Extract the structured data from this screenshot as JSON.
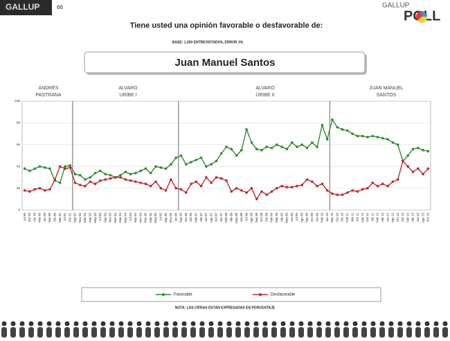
{
  "header": {
    "logo": "GALLUP",
    "page": "66",
    "brand": "GALLUP",
    "brand_word": "POLL"
  },
  "chart_data": {
    "type": "line",
    "title": "Tiene usted una opinión favorable o desfavorable de:",
    "subtitle": "BASE: 1.200 ENTREVISTADOS, ERROR 3%",
    "subject": "Juan Manuel Santos",
    "periods": [
      [
        "ANDRÉS",
        "PASTRANA"
      ],
      [
        "ALVARO",
        "URIBE I"
      ],
      [
        "ALVARO",
        "URIBE II"
      ],
      [
        "JUAN MANUEL",
        "SANTOS"
      ]
    ],
    "categories": [
      "Jul 99",
      "Oct 99",
      "Dic 99",
      "Mar 00",
      "Jun 00",
      "Sep 00",
      "Dic 00",
      "Mar 01",
      "Jul 01",
      "Dic 01",
      "Sep 02",
      "Nov 02",
      "Ene 03",
      "Mar 03",
      "May 03",
      "Jul 03",
      "Sep 03",
      "Nov 03",
      "Ene 04",
      "Mar 04",
      "May 04",
      "Jul 04",
      "Sep 04",
      "Nov 04",
      "Ene 05",
      "Mar 05",
      "May 05",
      "Jul 05",
      "Sep 05",
      "Nov 05",
      "Jun 06",
      "Sep 06",
      "Oct 06",
      "Dic 06",
      "Feb 07",
      "Abr 07",
      "Jun 07",
      "Ago 07",
      "Oct 07",
      "Dic 07",
      "Feb 08",
      "Abr 08",
      "May 08",
      "Jun 08",
      "Jul 08",
      "Ago 08",
      "Sep 08",
      "Oct 08",
      "Dic 08",
      "Feb 09",
      "Mar 09",
      "Abr 09",
      "May 09",
      "Jun 09",
      "Jul 09",
      "Ago 09",
      "Sep 09",
      "Oct 09",
      "Dic 09",
      "Feb 10",
      "Jun 10",
      "Sep 10",
      "Oct 10",
      "Dic 10",
      "Feb 11",
      "Abr 11",
      "Jun 11",
      "Ago 11",
      "Oct 11",
      "Dic 11",
      "Feb 12",
      "Abr 12",
      "Jun 12",
      "Ago 12",
      "Oct 12",
      "Dic 12",
      "Feb 13",
      "Abr 13",
      "Jun 13",
      "Ago 13",
      "Oct 13"
    ],
    "series": [
      {
        "name": "Favorable",
        "color": "#2e8b2e",
        "values": [
          38,
          36,
          38,
          40,
          39,
          38,
          27,
          25,
          40,
          41,
          33,
          32,
          28,
          30,
          34,
          36,
          33,
          32,
          30,
          32,
          35,
          33,
          34,
          36,
          38,
          34,
          40,
          39,
          38,
          42,
          48,
          50,
          42,
          44,
          46,
          48,
          40,
          42,
          45,
          52,
          58,
          56,
          50,
          55,
          74,
          62,
          56,
          55,
          58,
          57,
          60,
          58,
          56,
          62,
          58,
          60,
          57,
          62,
          58,
          78,
          65,
          83,
          76,
          74,
          73,
          70,
          68,
          68,
          67,
          68,
          67,
          66,
          65,
          62,
          60,
          45,
          50,
          56,
          57,
          55,
          54
        ]
      },
      {
        "name": "Desfavorable",
        "color": "#c0282d",
        "values": [
          18,
          17,
          19,
          20,
          18,
          19,
          28,
          40,
          38,
          39,
          25,
          23,
          22,
          26,
          24,
          27,
          28,
          29,
          30,
          30,
          28,
          27,
          26,
          25,
          24,
          22,
          26,
          20,
          18,
          28,
          20,
          19,
          16,
          24,
          26,
          22,
          30,
          25,
          30,
          29,
          27,
          17,
          20,
          18,
          16,
          20,
          10,
          17,
          14,
          17,
          20,
          22,
          21,
          21,
          22,
          23,
          28,
          26,
          22,
          24,
          18,
          15,
          14,
          14,
          16,
          18,
          17,
          19,
          20,
          25,
          22,
          24,
          22,
          26,
          28,
          45,
          40,
          35,
          38,
          33,
          38
        ]
      }
    ],
    "ylim": [
      0,
      100
    ],
    "yticks": [
      0,
      20,
      40,
      60,
      80,
      100
    ],
    "grid": true,
    "note": "NOTA: LAS CIFRAS ESTÁN EXPRESADAS EN PORCENTAJE"
  }
}
